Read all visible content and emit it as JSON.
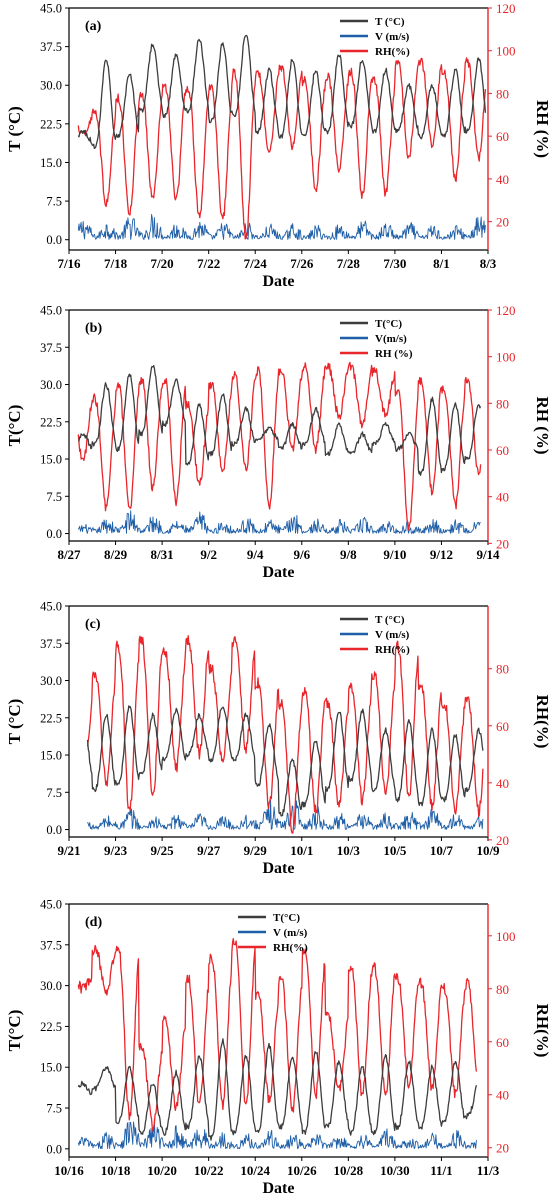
{
  "chart_data": [
    {
      "type": "line",
      "panel_label": "(a)",
      "xlabel": "Date",
      "ylabel_left": "T (°C)",
      "ylabel_right": "RH (%)",
      "x_ticks": [
        "7/16",
        "7/18",
        "7/20",
        "7/22",
        "7/24",
        "7/26",
        "7/28",
        "7/30",
        "8/1",
        "8/3"
      ],
      "x_range_days": [
        0,
        18
      ],
      "y_left_ticks": [
        "0.0",
        "7.5",
        "15.0",
        "22.5",
        "30.0",
        "37.5",
        "45.0"
      ],
      "ylim_left": [
        -2,
        45
      ],
      "y_right_ticks": [
        "20",
        "40",
        "60",
        "80",
        "100",
        "120"
      ],
      "ylim_right": [
        6.7,
        120
      ],
      "legend": [
        "T (°C)",
        "V (m/s)",
        "RH(%)"
      ],
      "legend_position": "top-right",
      "data_span": [
        0.4,
        17.9
      ],
      "series": [
        {
          "name": "T (°C)",
          "color": "#3d3d3d",
          "axis": "left",
          "wave": "temp",
          "daily_max": [
            21,
            35,
            32,
            38,
            36,
            39,
            38,
            40,
            33,
            35,
            33,
            36,
            35,
            33,
            30,
            30,
            33,
            35
          ],
          "daily_min": [
            19,
            18,
            20,
            25,
            24,
            25,
            23,
            24,
            21,
            20,
            20,
            21,
            22,
            21,
            21,
            20,
            20,
            21
          ]
        },
        {
          "name": "V (m/s)",
          "color": "#1f5fa8",
          "axis": "left",
          "wave": "wind",
          "daily_max": [
            4.5,
            4.0,
            5.0,
            5.5,
            3.8,
            4.2,
            3.6,
            3.5,
            3.2,
            3.4,
            3.0,
            3.3,
            4.0,
            3.6,
            3.5,
            3.2,
            3.0,
            5.0
          ]
        },
        {
          "name": "RH(%)",
          "color": "#e8262b",
          "axis": "right",
          "wave": "rh",
          "daily_max": [
            70,
            72,
            78,
            80,
            84,
            82,
            83,
            90,
            90,
            92,
            86,
            88,
            90,
            86,
            95,
            95,
            90,
            95
          ],
          "daily_min": [
            60,
            28,
            24,
            30,
            30,
            22,
            21,
            12,
            52,
            55,
            35,
            44,
            32,
            33,
            50,
            55,
            40,
            50
          ]
        }
      ]
    },
    {
      "type": "line",
      "panel_label": "(b)",
      "xlabel": "Date",
      "ylabel_left": "T(°C)",
      "ylabel_right": "RH (%)",
      "x_ticks": [
        "8/27",
        "8/29",
        "8/31",
        "9/2",
        "9/4",
        "9/6",
        "9/8",
        "9/10",
        "9/12",
        "9/14"
      ],
      "x_range_days": [
        0,
        18
      ],
      "y_left_ticks": [
        "0.0",
        "7.5",
        "15.0",
        "22.5",
        "30.0",
        "37.5",
        "45.0"
      ],
      "ylim_left": [
        -1.5,
        45
      ],
      "y_right_ticks": [
        "20",
        "40",
        "60",
        "80",
        "100",
        "120"
      ],
      "ylim_right": [
        21,
        120
      ],
      "legend": [
        "T(°C)",
        "V(m/s)",
        "RH (%)"
      ],
      "legend_position": "top-right",
      "data_span": [
        0.4,
        17.7
      ],
      "series": [
        {
          "name": "T(°C)",
          "color": "#3d3d3d",
          "axis": "left",
          "wave": "temp",
          "daily_max": [
            20,
            30,
            32,
            34,
            31,
            26,
            28,
            25,
            21,
            22,
            25,
            22,
            20,
            22,
            20,
            27,
            26,
            26
          ],
          "daily_min": [
            17,
            18,
            17,
            20,
            22,
            14,
            16,
            18,
            19,
            17,
            18,
            16,
            16,
            18,
            17,
            12,
            13,
            15
          ]
        },
        {
          "name": "V(m/s)",
          "color": "#1f5fa8",
          "axis": "left",
          "wave": "wind",
          "daily_max": [
            2.0,
            3.5,
            5.0,
            4.0,
            3.0,
            4.5,
            3.0,
            3.5,
            3.0,
            4.5,
            3.0,
            3.0,
            3.5,
            3.0,
            3.2,
            3.5,
            3.0,
            3.5
          ]
        },
        {
          "name": "RH (%)",
          "color": "#e8262b",
          "axis": "right",
          "wave": "rh",
          "daily_max": [
            82,
            82,
            88,
            90,
            90,
            80,
            88,
            92,
            94,
            94,
            96,
            96,
            96,
            94,
            86,
            90,
            86,
            90
          ],
          "daily_min": [
            55,
            35,
            34,
            44,
            38,
            45,
            50,
            52,
            36,
            60,
            60,
            74,
            70,
            75,
            26,
            42,
            36,
            50
          ]
        }
      ]
    },
    {
      "type": "line",
      "panel_label": "(c)",
      "xlabel": "Date",
      "ylabel_left": "T (°C)",
      "ylabel_right": "RH(%)",
      "x_ticks": [
        "9/21",
        "9/23",
        "9/25",
        "9/27",
        "9/29",
        "10/1",
        "10/3",
        "10/5",
        "10/7",
        "10/9"
      ],
      "x_range_days": [
        0,
        18
      ],
      "y_left_ticks": [
        "0.0",
        "7.5",
        "15.0",
        "22.5",
        "30.0",
        "37.5",
        "45.0"
      ],
      "ylim_left": [
        -1.5,
        45
      ],
      "y_right_ticks": [
        "20",
        "40",
        "60",
        "80"
      ],
      "ylim_right": [
        21,
        102
      ],
      "legend": [
        "T (°C)",
        "V (m/s)",
        "RH(%)"
      ],
      "legend_position": "top-right",
      "data_span": [
        0.8,
        17.8
      ],
      "series": [
        {
          "name": "T (°C)",
          "color": "#3d3d3d",
          "axis": "left",
          "wave": "temp",
          "daily_max": [
            24,
            23,
            25,
            23,
            24,
            23,
            25,
            23,
            21,
            14,
            18,
            24,
            24,
            20,
            22,
            20,
            19,
            20
          ],
          "daily_min": [
            10,
            8,
            9,
            11,
            14,
            15,
            14,
            14,
            9,
            3,
            5,
            8,
            10,
            8,
            6,
            5,
            6,
            8
          ]
        },
        {
          "name": "V (m/s)",
          "color": "#1f5fa8",
          "axis": "left",
          "wave": "wind",
          "daily_max": [
            2.5,
            3.0,
            4.5,
            3.0,
            3.5,
            3.5,
            3.0,
            3.5,
            6.0,
            6.5,
            5.0,
            3.5,
            4.0,
            3.5,
            4.0,
            5.0,
            3.5,
            3.0
          ]
        },
        {
          "name": "RH(%)",
          "color": "#e8262b",
          "axis": "right",
          "wave": "rh",
          "daily_max": [
            70,
            78,
            88,
            90,
            86,
            90,
            80,
            90,
            75,
            68,
            72,
            68,
            74,
            78,
            88,
            74,
            68,
            70
          ],
          "daily_min": [
            38,
            40,
            30,
            35,
            45,
            50,
            48,
            52,
            32,
            24,
            30,
            32,
            34,
            36,
            35,
            32,
            30,
            30
          ]
        }
      ]
    },
    {
      "type": "line",
      "panel_label": "(d)",
      "xlabel": "Date",
      "ylabel_left": "T(°C)",
      "ylabel_right": "RH(%)",
      "x_ticks": [
        "10/16",
        "10/18",
        "10/20",
        "10/22",
        "10/24",
        "10/26",
        "10/28",
        "10/30",
        "11/1",
        "11/3"
      ],
      "x_range_days": [
        0,
        18
      ],
      "y_left_ticks": [
        "0.0",
        "7.5",
        "15.0",
        "22.5",
        "30.0",
        "37.5",
        "45.0"
      ],
      "ylim_left": [
        -1.5,
        45
      ],
      "y_right_ticks": [
        "20",
        "40",
        "60",
        "80",
        "100"
      ],
      "ylim_right": [
        16.5,
        112
      ],
      "legend": [
        "T(°C)",
        "V (m/s)",
        "RH(%)"
      ],
      "legend_position": "top-center",
      "data_span": [
        0.4,
        17.5
      ],
      "series": [
        {
          "name": "T(°C)",
          "color": "#3d3d3d",
          "axis": "left",
          "wave": "temp",
          "daily_max": [
            12,
            15,
            15,
            12,
            14,
            17,
            20,
            17,
            19,
            17,
            18,
            16,
            15,
            17,
            16,
            15,
            16,
            12
          ],
          "daily_min": [
            10,
            11,
            5,
            3,
            3,
            4,
            2,
            3,
            3,
            4,
            3,
            4,
            3,
            3,
            4,
            4,
            5,
            6
          ]
        },
        {
          "name": "V (m/s)",
          "color": "#1f5fa8",
          "axis": "left",
          "wave": "wind",
          "daily_max": [
            2.5,
            3.5,
            6.5,
            5.5,
            4.5,
            5.0,
            3.5,
            3.0,
            3.5,
            3.0,
            3.0,
            3.5,
            3.0,
            4.0,
            3.0,
            3.0,
            3.5,
            3.0
          ]
        },
        {
          "name": "RH(%)",
          "color": "#e8262b",
          "axis": "right",
          "wave": "rh",
          "daily_max": [
            84,
            95,
            95,
            58,
            68,
            84,
            92,
            98,
            78,
            84,
            94,
            70,
            88,
            88,
            84,
            82,
            80,
            82
          ],
          "daily_min": [
            80,
            78,
            32,
            28,
            35,
            36,
            36,
            36,
            38,
            34,
            40,
            42,
            40,
            40,
            44,
            42,
            40,
            44
          ]
        }
      ]
    }
  ]
}
